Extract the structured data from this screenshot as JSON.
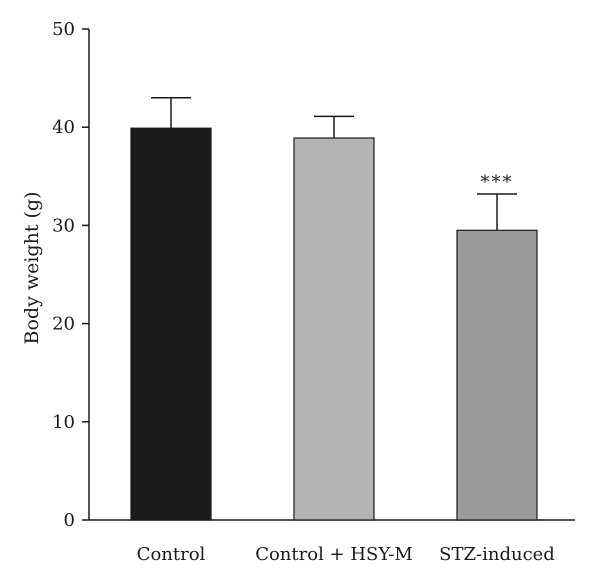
{
  "chart_data": {
    "type": "bar",
    "title": "",
    "xlabel": "",
    "ylabel": "Body weight (g)",
    "ylim": [
      0,
      50
    ],
    "yticks": [
      0,
      10,
      20,
      30,
      40,
      50
    ],
    "categories": [
      "Control",
      "Control + HSY-M",
      "STZ-induced"
    ],
    "values": [
      39.9,
      38.9,
      29.5
    ],
    "error_upper": [
      3.1,
      2.2,
      3.7
    ],
    "annotations": [
      "",
      "",
      "***"
    ],
    "colors": [
      "#1b1b1b",
      "#b3b3b3",
      "#9a9a9a"
    ],
    "grid": false,
    "legend": "none"
  }
}
